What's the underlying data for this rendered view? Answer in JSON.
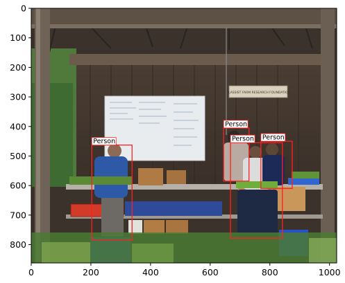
{
  "image": {
    "x_range": [
      0,
      1024
    ],
    "y_range": [
      0,
      862
    ]
  },
  "axes": {
    "x_ticks": [
      0,
      200,
      400,
      600,
      800,
      1000
    ],
    "y_ticks": [
      0,
      100,
      200,
      300,
      400,
      500,
      600,
      700,
      800
    ]
  },
  "scene": {
    "sign_text": "CLASSIST FARM RESEARCH FOUNDATION"
  },
  "detections": [
    {
      "label": "Person",
      "x1": 203,
      "y1": 463,
      "x2": 338,
      "y2": 785
    },
    {
      "label": "Person",
      "x1": 645,
      "y1": 405,
      "x2": 730,
      "y2": 585
    },
    {
      "label": "Person",
      "x1": 668,
      "y1": 455,
      "x2": 842,
      "y2": 778
    },
    {
      "label": "Person",
      "x1": 770,
      "y1": 450,
      "x2": 875,
      "y2": 610
    }
  ],
  "colors": {
    "box": "#ff2020",
    "label_bg": "#ffffff",
    "label_border": "#ff2020"
  }
}
